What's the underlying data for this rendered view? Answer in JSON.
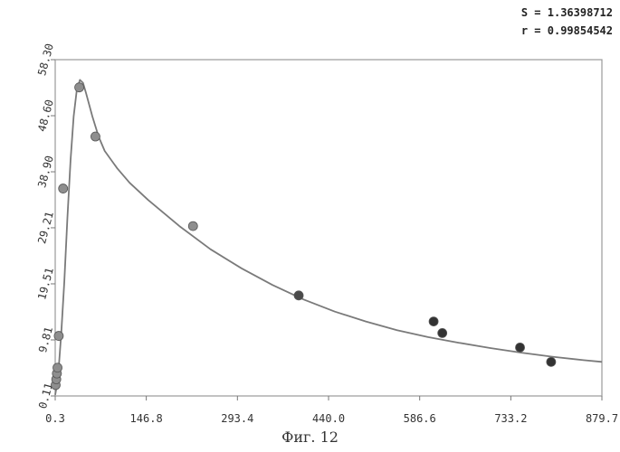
{
  "stats": {
    "s_text": "S = 1.36398712",
    "r_text": "r = 0.99854542"
  },
  "caption": "Фиг. 12",
  "chart_data": {
    "type": "scatter",
    "title": "",
    "xlabel": "",
    "ylabel": "",
    "xlim": [
      0.3,
      879.7
    ],
    "ylim": [
      0.11,
      58.3
    ],
    "x_ticks": [
      "0.3",
      "146.8",
      "293.4",
      "440.0",
      "586.6",
      "733.2",
      "879.7"
    ],
    "y_ticks": [
      "0.11",
      "9.81",
      "19.51",
      "29.21",
      "38.90",
      "48.60",
      "58.30"
    ],
    "grid": false,
    "series": [
      {
        "kind": "points",
        "x": [
          1,
          2,
          3,
          4,
          6,
          13,
          39,
          65,
          222,
          392,
          609,
          623,
          748,
          798
        ],
        "y": [
          2.0,
          3.0,
          4.0,
          5.0,
          10.5,
          36.0,
          53.5,
          45.0,
          29.5,
          17.5,
          13.0,
          11.0,
          8.5,
          6.0
        ],
        "colors": [
          "#8e8e8e",
          "#8e8e8e",
          "#8e8e8e",
          "#8e8e8e",
          "#8e8e8e",
          "#8e8e8e",
          "#8e8e8e",
          "#8e8e8e",
          "#8e8e8e",
          "#4a4a4a",
          "#333333",
          "#333333",
          "#333333",
          "#333333"
        ]
      },
      {
        "kind": "fit-curve",
        "x": [
          0.3,
          3,
          6,
          10,
          15,
          20,
          25,
          30,
          35,
          40,
          45,
          50,
          60,
          70,
          80,
          100,
          120,
          150,
          200,
          250,
          300,
          350,
          400,
          450,
          500,
          550,
          600,
          650,
          700,
          750,
          800,
          850,
          879.7
        ],
        "y": [
          0.3,
          2.0,
          5.0,
          11.0,
          20.0,
          31.0,
          41.0,
          48.5,
          53.0,
          54.8,
          54.3,
          52.5,
          48.5,
          45.0,
          42.5,
          39.5,
          37.0,
          34.0,
          29.5,
          25.5,
          22.2,
          19.3,
          16.8,
          14.7,
          13.0,
          11.5,
          10.3,
          9.3,
          8.4,
          7.6,
          6.9,
          6.3,
          6.0
        ],
        "color": "#7a7a7a"
      }
    ]
  }
}
